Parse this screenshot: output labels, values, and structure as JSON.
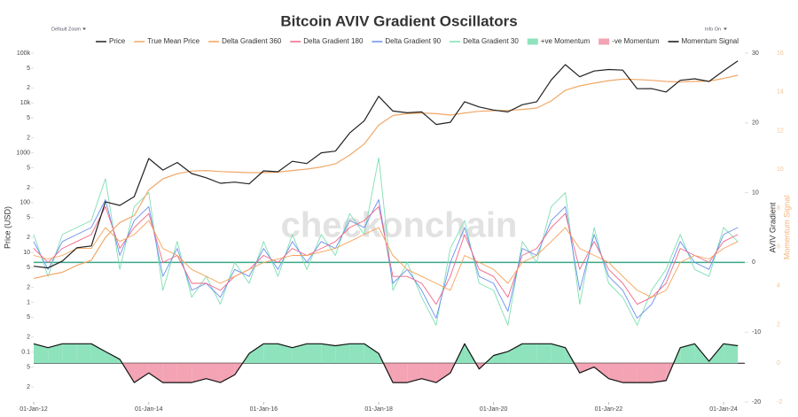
{
  "controls": {
    "zoom": "Default Zoom",
    "info": "Info On"
  },
  "watermark": "checkonchain",
  "chart_data": {
    "type": "line",
    "title": "Bitcoin AVIV Gradient Oscillators",
    "ylabel": "Price (USD)",
    "y2label": "AVIV Gradient",
    "y3label": "Momentum Signal",
    "log_y": true,
    "x": [
      "2012-01-01",
      "2012-04-01",
      "2012-07-01",
      "2012-10-01",
      "2013-01-01",
      "2013-04-01",
      "2013-07-01",
      "2013-10-01",
      "2014-01-01",
      "2014-04-01",
      "2014-07-01",
      "2014-10-01",
      "2015-01-01",
      "2015-04-01",
      "2015-07-01",
      "2015-10-01",
      "2016-01-01",
      "2016-04-01",
      "2016-07-01",
      "2016-10-01",
      "2017-01-01",
      "2017-04-01",
      "2017-07-01",
      "2017-10-01",
      "2018-01-01",
      "2018-04-01",
      "2018-07-01",
      "2018-10-01",
      "2019-01-01",
      "2019-04-01",
      "2019-07-01",
      "2019-10-01",
      "2020-01-01",
      "2020-04-01",
      "2020-07-01",
      "2020-10-01",
      "2021-01-01",
      "2021-04-01",
      "2021-07-01",
      "2021-10-01",
      "2022-01-01",
      "2022-04-01",
      "2022-07-01",
      "2022-10-01",
      "2023-01-01",
      "2023-04-01",
      "2023-07-01",
      "2023-10-01",
      "2024-01-01",
      "2024-04-01"
    ],
    "xlim": [
      "2012-01-01",
      "2024-05-15"
    ],
    "xticks": [
      {
        "value": "2012-01-01",
        "label": "01-Jan-12"
      },
      {
        "value": "2014-01-01",
        "label": "01-Jan-14"
      },
      {
        "value": "2016-01-01",
        "label": "01-Jan-16"
      },
      {
        "value": "2018-01-01",
        "label": "01-Jan-18"
      },
      {
        "value": "2020-01-01",
        "label": "01-Jan-20"
      },
      {
        "value": "2022-01-01",
        "label": "01-Jan-22"
      },
      {
        "value": "2024-01-01",
        "label": "01-Jan-24"
      }
    ],
    "ylim": [
      0.01,
      100000
    ],
    "yticks": [
      {
        "value": 100000,
        "label": "100k"
      },
      {
        "value": 50000,
        "label": "5"
      },
      {
        "value": 20000,
        "label": "2"
      },
      {
        "value": 10000,
        "label": "10k"
      },
      {
        "value": 5000,
        "label": "5"
      },
      {
        "value": 2000,
        "label": "2"
      },
      1000,
      {
        "value": 500,
        "label": "5"
      },
      {
        "value": 200,
        "label": "2"
      },
      100,
      {
        "value": 50,
        "label": "5"
      },
      {
        "value": 20,
        "label": "2"
      },
      10,
      5,
      2,
      1,
      {
        "value": 0.5,
        "label": "5"
      },
      {
        "value": 0.2,
        "label": "2"
      },
      0.1,
      {
        "value": 0.05,
        "label": "5"
      },
      {
        "value": 0.02,
        "label": "2"
      }
    ],
    "y2lim": [
      -20,
      30
    ],
    "y2ticks": [
      -20,
      -10,
      0,
      10,
      20,
      30
    ],
    "y3lim": [
      -2,
      16
    ],
    "y3ticks": [
      -2,
      0,
      2,
      4,
      6,
      8,
      10,
      12,
      14,
      16
    ],
    "series": [
      {
        "name": "Price",
        "color": "#222222",
        "values": [
          5.3,
          4.9,
          6.7,
          12.4,
          13.5,
          104,
          88,
          132,
          770,
          450,
          640,
          383,
          315,
          245,
          258,
          238,
          434,
          417,
          675,
          610,
          998,
          1080,
          2500,
          4400,
          13600,
          6900,
          6350,
          6600,
          3700,
          4100,
          10600,
          8300,
          7200,
          6600,
          9200,
          10600,
          29000,
          58700,
          33500,
          43800,
          47000,
          45500,
          19300,
          19400,
          16600,
          28500,
          30500,
          27000,
          44200,
          69700
        ]
      },
      {
        "name": "True Mean Price",
        "color": "#f0a868",
        "values": [
          3,
          3.5,
          4,
          5.5,
          7,
          20,
          40,
          55,
          180,
          300,
          380,
          430,
          440,
          420,
          410,
          400,
          400,
          410,
          440,
          470,
          520,
          600,
          900,
          1500,
          3600,
          5600,
          6100,
          6300,
          6100,
          5700,
          6300,
          6800,
          7000,
          7100,
          7400,
          7900,
          11000,
          18000,
          22000,
          25000,
          28000,
          30000,
          29500,
          28500,
          27000,
          26500,
          27000,
          27500,
          31000,
          36000
        ]
      },
      {
        "name": "Delta Gradient 360",
        "color": "#f4a259",
        "axis": "y2",
        "values": [
          1,
          0.5,
          1,
          2,
          2,
          5,
          3,
          4,
          6,
          2,
          1,
          -1,
          -2,
          -3,
          -2,
          -1,
          0,
          0.5,
          1,
          1,
          1.5,
          2,
          3,
          4,
          5,
          1,
          -1,
          -2,
          -3,
          -4,
          1,
          0,
          -1,
          -3,
          0,
          1,
          3,
          5,
          2,
          1,
          0,
          -2,
          -4,
          -5,
          -4,
          0,
          1,
          0.5,
          2,
          3
        ]
      },
      {
        "name": "Delta Gradient 180",
        "color": "#f06685",
        "axis": "y2",
        "values": [
          2,
          0,
          2,
          3,
          4,
          8,
          2,
          5,
          7,
          0,
          1,
          -3,
          -3,
          -4,
          -2,
          -1,
          1,
          0,
          2,
          1,
          2,
          3,
          5,
          6,
          8,
          -2,
          -2,
          -3,
          -6,
          -2,
          4,
          -1,
          -2,
          -5,
          1,
          2,
          5,
          7,
          -1,
          3,
          -1,
          -3,
          -6,
          -5,
          -3,
          2,
          1,
          0,
          3,
          4
        ]
      },
      {
        "name": "Delta Gradient 90",
        "color": "#6a8ff0",
        "axis": "y2",
        "values": [
          3,
          -1,
          3,
          4,
          5,
          9,
          1,
          6,
          8,
          -2,
          2,
          -4,
          -3,
          -5,
          -1,
          -2,
          2,
          -1,
          3,
          0,
          3,
          2,
          6,
          5,
          9,
          -3,
          -1,
          -4,
          -8,
          0,
          5,
          -2,
          -3,
          -7,
          2,
          1,
          6,
          8,
          -4,
          4,
          -2,
          -4,
          -8,
          -6,
          -2,
          3,
          0,
          -1,
          4,
          5
        ]
      },
      {
        "name": "Delta Gradient 30",
        "color": "#7ddfb2",
        "axis": "y2",
        "values": [
          4,
          -2,
          4,
          5,
          6,
          12,
          -1,
          8,
          10,
          -4,
          3,
          -5,
          -2,
          -6,
          0,
          -3,
          3,
          -2,
          4,
          -1,
          4,
          1,
          7,
          4,
          15,
          -4,
          0,
          -5,
          -9,
          2,
          6,
          -3,
          -4,
          -9,
          3,
          0,
          8,
          10,
          -6,
          5,
          -3,
          -5,
          -9,
          -4,
          -1,
          4,
          -1,
          -2,
          5,
          3
        ]
      },
      {
        "name": "Momentum Signal",
        "color": "#111111",
        "axis": "y3",
        "values": [
          1,
          0.8,
          1,
          1,
          1,
          0.6,
          0.2,
          -1,
          -0.5,
          -1,
          -1,
          -1,
          -0.8,
          -1,
          -0.6,
          0.5,
          1,
          1,
          0.8,
          1,
          1,
          0.9,
          1,
          1,
          0.5,
          -1,
          -1,
          -0.8,
          -1,
          -0.5,
          1,
          -0.3,
          0.4,
          0.6,
          1,
          1,
          1,
          0.8,
          -0.5,
          -0.2,
          -0.8,
          -1,
          -1,
          -1,
          -0.9,
          0.8,
          1,
          0.1,
          1,
          0.9
        ]
      }
    ],
    "fills": [
      {
        "name": "+ve Momentum",
        "color": "#8ee3bd"
      },
      {
        "name": "-ve Momentum",
        "color": "#f3a3b3"
      }
    ]
  }
}
